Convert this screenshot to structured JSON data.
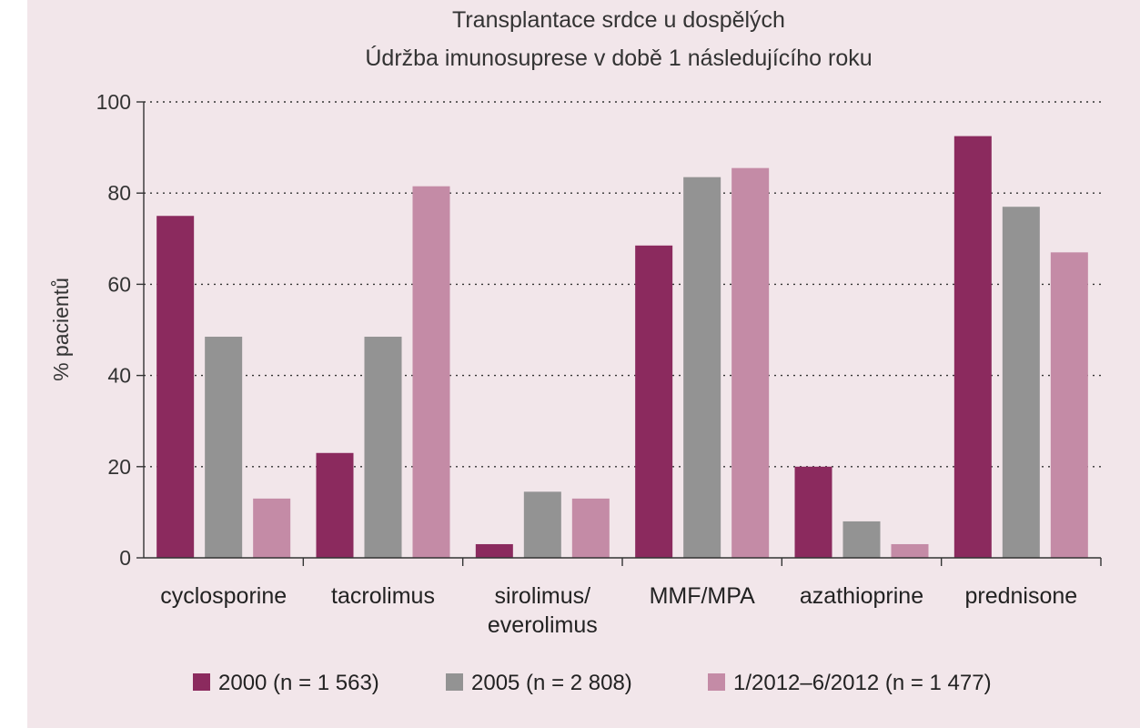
{
  "chart_data": {
    "type": "bar",
    "title": "Transplantace srdce u dospělých",
    "subtitle": "Údržba imunosuprese v době 1 následujícího roku",
    "ylabel": "% pacientů",
    "xlabel": "",
    "ylim": [
      0,
      100
    ],
    "yticks": [
      "0",
      "20",
      "40",
      "60",
      "80",
      "100"
    ],
    "grid": true,
    "legend_position": "bottom",
    "categories": [
      [
        "cyclosporine"
      ],
      [
        "tacrolimus"
      ],
      [
        "sirolimus/",
        "everolimus"
      ],
      [
        "MMF/MPA"
      ],
      [
        "azathioprine"
      ],
      [
        "prednisone"
      ]
    ],
    "series": [
      {
        "name": "2000 (n = 1 563)",
        "color": "#8b2a5e",
        "values": [
          75,
          23,
          3,
          68.5,
          20,
          92.5
        ]
      },
      {
        "name": "2005 (n = 2 808)",
        "color": "#939393",
        "values": [
          48.5,
          48.5,
          14.5,
          83.5,
          8,
          77
        ]
      },
      {
        "name": "1/2012–6/2012 (n = 1 477)",
        "color": "#c48ba6",
        "values": [
          13,
          81.5,
          13,
          85.5,
          3,
          67
        ]
      }
    ]
  }
}
